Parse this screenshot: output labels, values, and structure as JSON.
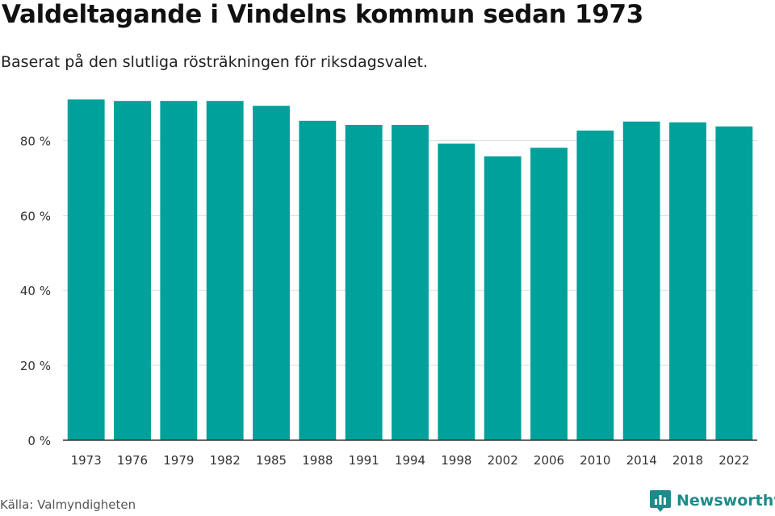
{
  "title": "Valdeltagande i Vindelns kommun sedan 1973",
  "subtitle": "Baserat på den slutliga rösträkningen för riksdagsvalet.",
  "source": "Källa: Valmyndigheten",
  "brand": {
    "name": "Newsworthy",
    "icon": "newsworthy-logo-icon",
    "color": "#1f8a8a"
  },
  "colors": {
    "bar": "#00a19a",
    "grid": "#dddddd",
    "axis": "#333333"
  },
  "chart_data": {
    "type": "bar",
    "categories": [
      "1973",
      "1976",
      "1979",
      "1982",
      "1985",
      "1988",
      "1991",
      "1994",
      "1998",
      "2002",
      "2006",
      "2010",
      "2014",
      "2018",
      "2022"
    ],
    "values": [
      91.0,
      90.6,
      90.6,
      90.6,
      89.3,
      85.3,
      84.2,
      84.2,
      79.2,
      75.8,
      78.1,
      82.7,
      85.1,
      84.9,
      83.8
    ],
    "ylim": [
      0,
      90
    ],
    "yticks": [
      0,
      20,
      40,
      60,
      80
    ],
    "ytick_labels": [
      "0 %",
      "20 %",
      "40 %",
      "60 %",
      "80 %"
    ],
    "xlabel": "",
    "ylabel": "",
    "grid": true,
    "legend": "none"
  }
}
